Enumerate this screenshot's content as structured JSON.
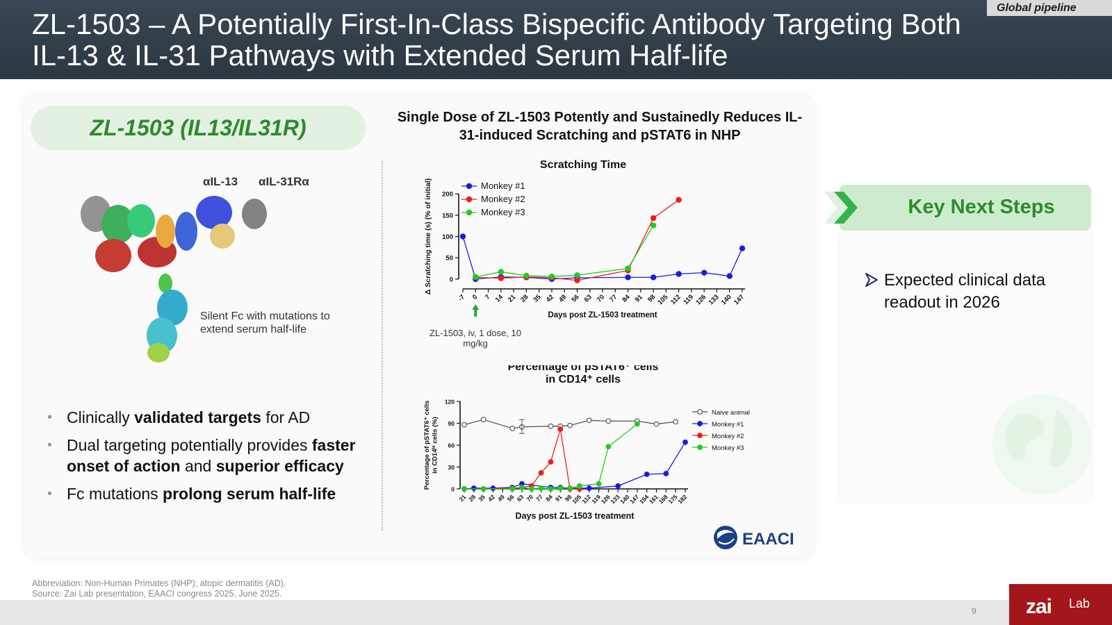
{
  "header": {
    "title": "ZL-1503 – A Potentially First-In-Class Bispecific Antibody Targeting Both IL-13 & IL-31 Pathways with Extended Serum Half-life",
    "tag": "Global pipeline"
  },
  "left": {
    "pill": "ZL-1503 (IL13/IL31R)",
    "label_il13": "αIL-13",
    "label_il31": "αIL-31Rα",
    "fc_note": "Silent Fc with mutations to extend serum half-life",
    "bullets": [
      {
        "pre": "Clinically ",
        "bold": "validated targets",
        "mid": " for AD",
        "bold2": "",
        "post": ""
      },
      {
        "pre": "Dual targeting potentially provides ",
        "bold": "faster onset of action",
        "mid": " and ",
        "bold2": "superior efficacy",
        "post": ""
      },
      {
        "pre": "Fc mutations ",
        "bold": "prolong serum half-life",
        "mid": "",
        "bold2": "",
        "post": ""
      }
    ]
  },
  "charts_heading": "Single Dose of ZL-1503 Potently and Sustainedly Reduces IL-31-induced Scratching and pSTAT6 in NHP",
  "dose_note": "ZL-1503, iv, 1 dose, 10 mg/kg",
  "colors": {
    "blue": "#1a1ae6",
    "red": "#ee1c1c",
    "green": "#1fcc1f",
    "gray": "#555555",
    "accent_green": "#2d8a2d"
  },
  "chart_data": [
    {
      "type": "line",
      "title": "Scratching Time",
      "xlabel": "Days post ZL-1503 treatment",
      "ylabel": "Δ Scratching time (s) (% of initial)",
      "x_ticks": [
        -7,
        0,
        7,
        14,
        21,
        28,
        35,
        42,
        49,
        56,
        63,
        70,
        77,
        84,
        91,
        98,
        105,
        112,
        119,
        126,
        133,
        140,
        147
      ],
      "y_ticks": [
        0,
        50,
        100,
        150,
        200
      ],
      "ylim": [
        -10,
        210
      ],
      "xlim": [
        -7,
        147
      ],
      "legend_position": "top-left",
      "series": [
        {
          "name": "Monkey #1",
          "color": "#1a1ae6",
          "x": [
            -7,
            0,
            14,
            28,
            42,
            56,
            84,
            98,
            112,
            126,
            140,
            147
          ],
          "y": [
            100,
            0,
            5,
            4,
            0,
            3,
            4,
            4,
            12,
            15,
            7,
            72
          ]
        },
        {
          "name": "Monkey #2",
          "color": "#ee1c1c",
          "x": [
            0,
            14,
            28,
            42,
            56,
            84,
            98,
            112
          ],
          "y": [
            4,
            2,
            5,
            3,
            -3,
            20,
            143,
            186
          ]
        },
        {
          "name": "Monkey #3",
          "color": "#1fcc1f",
          "x": [
            0,
            14,
            28,
            42,
            56,
            84,
            98
          ],
          "y": [
            5,
            17,
            8,
            6,
            9,
            25,
            126
          ]
        }
      ]
    },
    {
      "type": "line",
      "title": "Percentage of pSTAT6⁺ cells in CD14⁺ cells",
      "xlabel": "Days post ZL-1503 treatment",
      "ylabel": "Percentage of pSTAT6⁺ cells in CD14ʰⁱ cells (%)",
      "x_ticks": [
        21,
        28,
        35,
        42,
        49,
        56,
        63,
        70,
        77,
        84,
        91,
        98,
        105,
        112,
        119,
        126,
        133,
        140,
        147,
        154,
        161,
        168,
        175,
        182
      ],
      "y_ticks": [
        0,
        30,
        60,
        90,
        120
      ],
      "ylim": [
        0,
        120
      ],
      "xlim": [
        21,
        182
      ],
      "legend_position": "top-right",
      "series": [
        {
          "name": "Naive animal",
          "color": "#555555",
          "open_marker": true,
          "x": [
            21,
            35,
            56,
            63,
            84,
            91,
            98,
            112,
            126,
            147,
            161,
            175
          ],
          "y": [
            88,
            95,
            83,
            85,
            86,
            86,
            87,
            94,
            93,
            93,
            89,
            92
          ]
        },
        {
          "name": "Monkey #1",
          "color": "#1a1ae6",
          "x": [
            21,
            28,
            42,
            56,
            63,
            84,
            91,
            98,
            112,
            133,
            154,
            168,
            182
          ],
          "y": [
            0,
            1,
            1,
            2,
            7,
            2,
            2,
            1,
            1,
            4,
            20,
            21,
            64
          ]
        },
        {
          "name": "Monkey #2",
          "color": "#ee1c1c",
          "x": [
            21,
            35,
            56,
            63,
            70,
            77,
            84,
            91,
            98,
            105
          ],
          "y": [
            0,
            0,
            1,
            2,
            4,
            22,
            37,
            82,
            0,
            0
          ]
        },
        {
          "name": "Monkey #3",
          "color": "#1fcc1f",
          "x": [
            21,
            35,
            56,
            63,
            70,
            77,
            84,
            91,
            98,
            105,
            119,
            126,
            147
          ],
          "y": [
            0,
            0,
            0,
            2,
            0,
            1,
            0,
            1,
            1,
            4,
            7,
            58,
            89
          ]
        }
      ]
    }
  ],
  "eaaci_logo": "EAACI",
  "steps": {
    "header": "Key Next Steps",
    "item": "Expected clinical data readout in 2026"
  },
  "footnote": {
    "line1": "Abbreviation: Non-Human Primates (NHP); atopic dermatitis (AD).",
    "line2": "Source: Zai Lab presentation, EAACI congress 2025, June 2025."
  },
  "page_number": "9",
  "logo": {
    "main": "zai",
    "sub": "Lab"
  }
}
